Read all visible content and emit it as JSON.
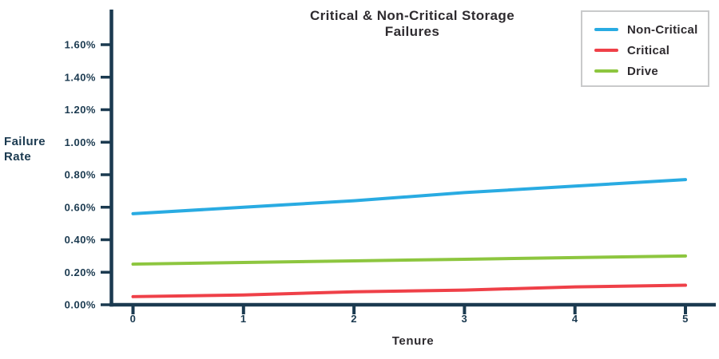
{
  "chart_data": {
    "type": "line",
    "title": "Critical & Non-Critical Storage Failures",
    "xlabel": "Tenure",
    "ylabel": "Failure Rate",
    "x": [
      0,
      1,
      2,
      3,
      4,
      5
    ],
    "series": [
      {
        "name": "Non-Critical",
        "color": "#29abe2",
        "values": [
          0.56,
          0.6,
          0.64,
          0.69,
          0.73,
          0.77
        ]
      },
      {
        "name": "Critical",
        "color": "#ef4048",
        "values": [
          0.05,
          0.06,
          0.08,
          0.09,
          0.11,
          0.12
        ]
      },
      {
        "name": "Drive",
        "color": "#8dc63f",
        "values": [
          0.25,
          0.26,
          0.27,
          0.28,
          0.29,
          0.3
        ]
      }
    ],
    "ylim": [
      0.0,
      1.7
    ],
    "ytick_labels": [
      "0.00%",
      "0.20%",
      "0.40%",
      "0.60%",
      "0.80%",
      "1.00%",
      "1.20%",
      "1.40%",
      "1.60%"
    ],
    "xtick_labels": [
      "0",
      "1",
      "2",
      "3",
      "4",
      "5"
    ],
    "legend_position": "top-right",
    "grid": false
  },
  "colors": {
    "axis": "#1b3a50",
    "tick_text": "#1b3a50",
    "title_text": "#2e2b2f",
    "legend_border": "#c9cacb",
    "background": "#ffffff"
  }
}
